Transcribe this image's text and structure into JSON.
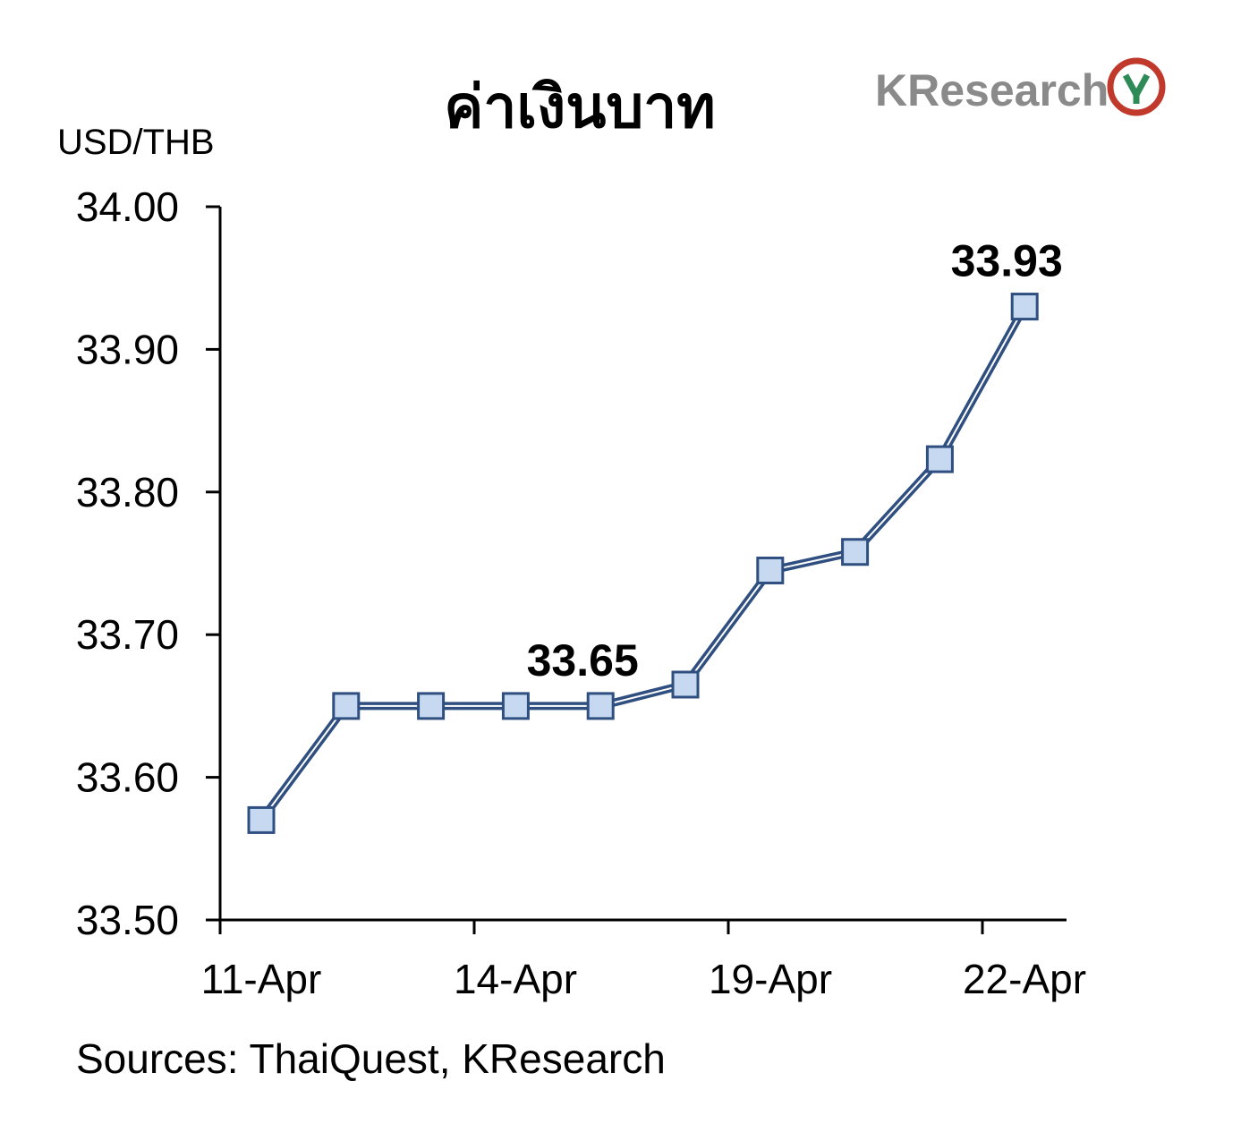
{
  "title": "ค่าเงินบาท",
  "logo_text": "KResearch",
  "source": "Sources: ThaiQuest, KResearch",
  "colors": {
    "line": "#2f4f80",
    "marker_fill": "#c6d9f0",
    "marker_stroke": "#2f4f80",
    "logo_red": "#c0392b",
    "logo_green": "#2e8b57"
  },
  "chart_data": {
    "type": "line",
    "ylabel": "USD/THB",
    "ylim": [
      33.5,
      34.0
    ],
    "yticks": [
      "34.00",
      "33.90",
      "33.80",
      "33.70",
      "33.60",
      "33.50"
    ],
    "xtick_labels": [
      "11-Apr",
      "14-Apr",
      "19-Apr",
      "22-Apr"
    ],
    "values": [
      33.57,
      33.65,
      33.65,
      33.65,
      33.65,
      33.665,
      33.745,
      33.758,
      33.823,
      33.93
    ],
    "data_labels": [
      {
        "point_index": 4,
        "text": "33.65"
      },
      {
        "point_index": 9,
        "text": "33.93"
      }
    ],
    "grid": false,
    "legend": "none"
  }
}
